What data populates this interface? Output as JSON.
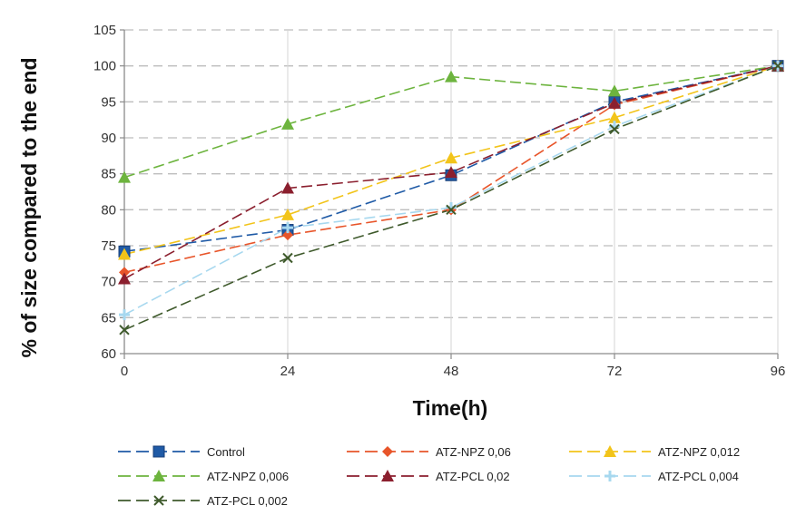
{
  "chart_data": {
    "type": "line",
    "title": "",
    "xlabel": "Time(h)",
    "ylabel": "% of size compared to the end",
    "x": [
      0,
      24,
      48,
      72,
      96
    ],
    "xlim": [
      0,
      96
    ],
    "ylim": [
      60,
      105
    ],
    "x_ticks": [
      "0",
      "24",
      "48",
      "72",
      "96"
    ],
    "y_ticks": [
      "60",
      "65",
      "70",
      "75",
      "80",
      "85",
      "90",
      "95",
      "100",
      "105"
    ],
    "grid": "horizontal dashed",
    "legend_position": "bottom",
    "series": [
      {
        "name": "Control",
        "color": "#1f5aa6",
        "marker": "square",
        "values": [
          74.2,
          77.2,
          84.8,
          95.0,
          100.0
        ]
      },
      {
        "name": "ATZ-NPZ 0,06",
        "color": "#e8552a",
        "marker": "diamond",
        "values": [
          71.3,
          76.5,
          80.0,
          94.6,
          100.0
        ]
      },
      {
        "name": "ATZ-NPZ 0,012",
        "color": "#f2c41a",
        "marker": "triangle",
        "values": [
          73.8,
          79.3,
          87.2,
          92.8,
          100.0
        ]
      },
      {
        "name": "ATZ-NPZ 0,006",
        "color": "#6db43e",
        "marker": "triangle",
        "values": [
          84.5,
          91.9,
          98.5,
          96.5,
          100.0
        ]
      },
      {
        "name": "ATZ-PCL 0,02",
        "color": "#8b1f2e",
        "marker": "triangle",
        "values": [
          70.4,
          83.0,
          85.2,
          94.8,
          100.0
        ]
      },
      {
        "name": "ATZ-PCL 0,004",
        "color": "#a7d8ef",
        "marker": "plus",
        "values": [
          65.4,
          77.5,
          80.3,
          91.6,
          100.0
        ]
      },
      {
        "name": "ATZ-PCL 0,002",
        "color": "#3f5a2c",
        "marker": "x",
        "values": [
          63.3,
          73.3,
          80.0,
          91.2,
          100.0
        ]
      }
    ]
  }
}
